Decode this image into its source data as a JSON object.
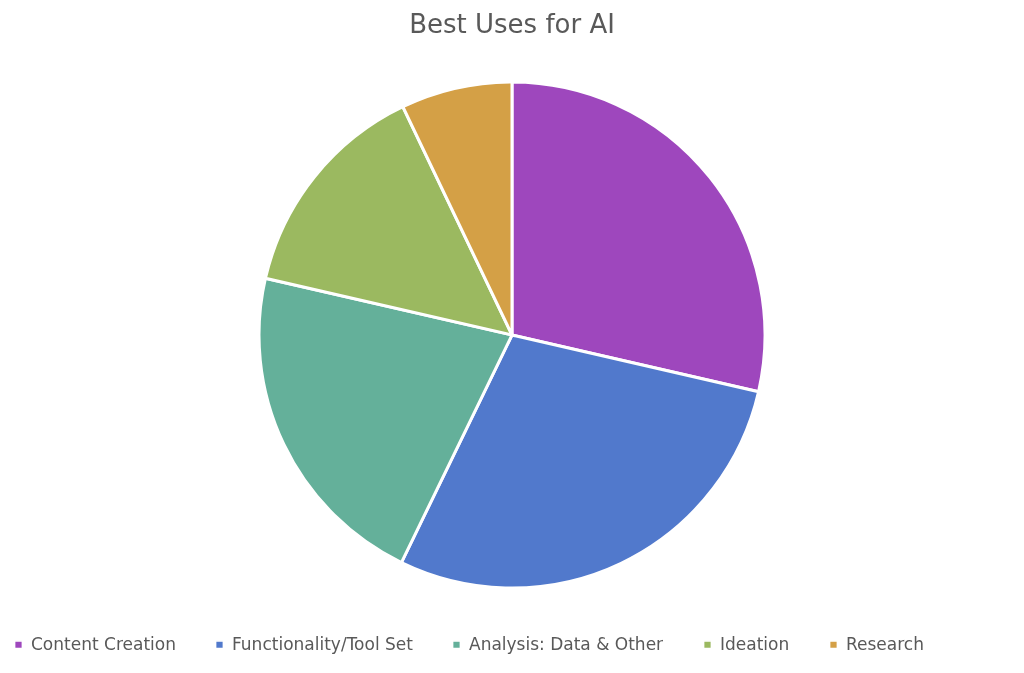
{
  "chart_data": {
    "type": "pie",
    "title": "Best Uses for AI",
    "categories": [
      "Content Creation",
      "Functionality/Tool Set",
      "Analysis: Data & Other",
      "Ideation",
      "Research"
    ],
    "values": [
      28.6,
      28.6,
      21.4,
      14.3,
      7.1
    ],
    "colors": [
      "#9e47bd",
      "#5179cc",
      "#64b09a",
      "#9bb960",
      "#d4a046"
    ],
    "legend": "bottom"
  }
}
